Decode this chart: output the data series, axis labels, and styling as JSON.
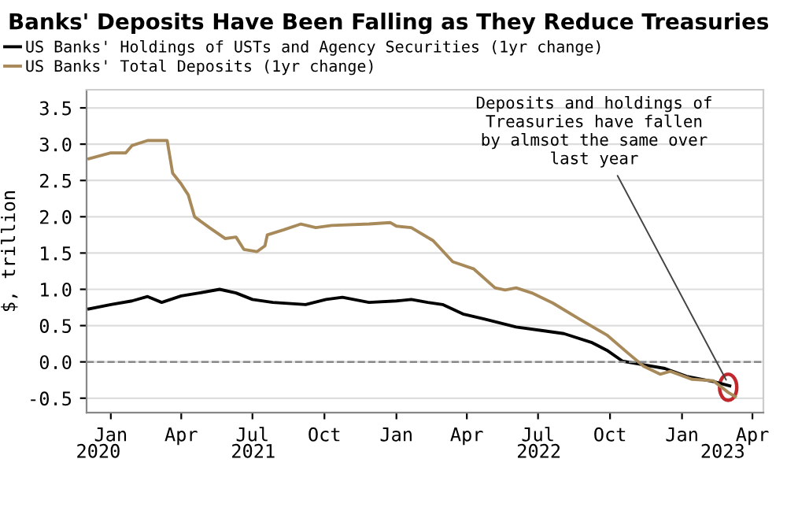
{
  "chart_data": {
    "type": "line",
    "title": "Banks' Deposits Have Been Falling as They Reduce Treasuries",
    "ylabel": "$, trillion",
    "series": [
      {
        "name": "US Banks' Holdings of USTs and Agency Securities (1yr change)",
        "color": "#000000",
        "x": [
          "2020-12-04",
          "2021-01-01",
          "2021-01-28",
          "2021-02-17",
          "2021-03-07",
          "2021-04-01",
          "2021-04-24",
          "2021-05-20",
          "2021-06-10",
          "2021-07-01",
          "2021-07-27",
          "2021-09-07",
          "2021-10-03",
          "2021-10-24",
          "2021-11-27",
          "2022-01-01",
          "2022-01-20",
          "2022-02-10",
          "2022-03-01",
          "2022-03-27",
          "2022-04-24",
          "2022-06-03",
          "2022-07-07",
          "2022-08-03",
          "2022-09-07",
          "2022-09-27",
          "2022-10-17",
          "2022-11-13",
          "2022-12-10",
          "2023-01-07",
          "2023-02-10",
          "2023-03-03"
        ],
        "values": [
          0.73,
          0.79,
          0.84,
          0.9,
          0.82,
          0.91,
          0.95,
          1.0,
          0.95,
          0.86,
          0.82,
          0.79,
          0.86,
          0.89,
          0.82,
          0.84,
          0.86,
          0.82,
          0.79,
          0.66,
          0.59,
          0.48,
          0.43,
          0.39,
          0.27,
          0.16,
          0.01,
          -0.04,
          -0.09,
          -0.2,
          -0.27,
          -0.33
        ]
      },
      {
        "name": "US Banks' Total Deposits (1yr change)",
        "color": "#a88a5a",
        "x": [
          "2020-12-04",
          "2021-01-01",
          "2021-01-20",
          "2021-01-28",
          "2021-02-17",
          "2021-03-14",
          "2021-03-21",
          "2021-04-01",
          "2021-04-10",
          "2021-04-18",
          "2021-05-07",
          "2021-05-27",
          "2021-06-10",
          "2021-06-20",
          "2021-07-07",
          "2021-07-17",
          "2021-07-20",
          "2021-08-10",
          "2021-09-01",
          "2021-09-20",
          "2021-10-10",
          "2021-11-27",
          "2021-12-24",
          "2022-01-01",
          "2022-01-20",
          "2022-02-17",
          "2022-03-14",
          "2022-04-10",
          "2022-05-07",
          "2022-05-20",
          "2022-06-03",
          "2022-06-23",
          "2022-07-20",
          "2022-08-23",
          "2022-09-27",
          "2022-10-24",
          "2022-11-13",
          "2022-12-04",
          "2022-12-17",
          "2023-01-14",
          "2023-02-10",
          "2023-03-01",
          "2023-03-10"
        ],
        "values": [
          2.8,
          2.88,
          2.88,
          2.98,
          3.05,
          3.05,
          2.6,
          2.45,
          2.3,
          2.0,
          1.85,
          1.7,
          1.72,
          1.55,
          1.52,
          1.6,
          1.75,
          1.82,
          1.9,
          1.85,
          1.88,
          1.9,
          1.92,
          1.87,
          1.85,
          1.67,
          1.38,
          1.28,
          1.02,
          0.99,
          1.02,
          0.95,
          0.81,
          0.59,
          0.37,
          0.12,
          -0.06,
          -0.17,
          -0.13,
          -0.24,
          -0.26,
          -0.42,
          -0.48
        ]
      }
    ],
    "xlim": [
      "2020-12-01",
      "2023-04-15"
    ],
    "xticks": [
      {
        "value": "2021-01-01",
        "label": "Jan"
      },
      {
        "value": "2021-04-01",
        "label": "Apr"
      },
      {
        "value": "2021-07-01",
        "label": "Jul"
      },
      {
        "value": "2021-10-01",
        "label": "Oct"
      },
      {
        "value": "2022-01-01",
        "label": "Jan"
      },
      {
        "value": "2022-04-01",
        "label": "Apr"
      },
      {
        "value": "2022-07-01",
        "label": "Jul"
      },
      {
        "value": "2022-10-01",
        "label": "Oct"
      },
      {
        "value": "2023-01-01",
        "label": "Jan"
      },
      {
        "value": "2023-04-01",
        "label": "Apr"
      }
    ],
    "x2lim": [
      "2020-12-01",
      "2023-04-15"
    ],
    "x2ticks": [
      {
        "value": "2020-12-16",
        "label": "2020"
      },
      {
        "value": "2021-07-02",
        "label": "2021"
      },
      {
        "value": "2022-07-02",
        "label": "2022"
      },
      {
        "value": "2023-02-22",
        "label": "2023"
      }
    ],
    "ylim": [
      -0.7,
      3.75
    ],
    "yticks": [
      {
        "value": -0.5,
        "label": "-0.5"
      },
      {
        "value": 0,
        "label": "0.0"
      },
      {
        "value": 0.5,
        "label": "0.5"
      },
      {
        "value": 1,
        "label": "1.0"
      },
      {
        "value": 1.5,
        "label": "1.5"
      },
      {
        "value": 2,
        "label": "2.0"
      },
      {
        "value": 2.5,
        "label": "2.5"
      },
      {
        "value": 3,
        "label": "3.0"
      },
      {
        "value": 3.5,
        "label": "3.5"
      }
    ],
    "ref_lines": [
      {
        "axis": "y",
        "value": 0,
        "color": "#888888",
        "line_style": "dashed"
      }
    ],
    "annotations": [
      {
        "text": "Deposits and holdings of\nTreasuries have fallen\nby almsot the same over\nlast year",
        "x": "2023-03-01",
        "y": -0.3
      }
    ],
    "grid": "y",
    "legend": "top left",
    "line_style": "solid"
  }
}
